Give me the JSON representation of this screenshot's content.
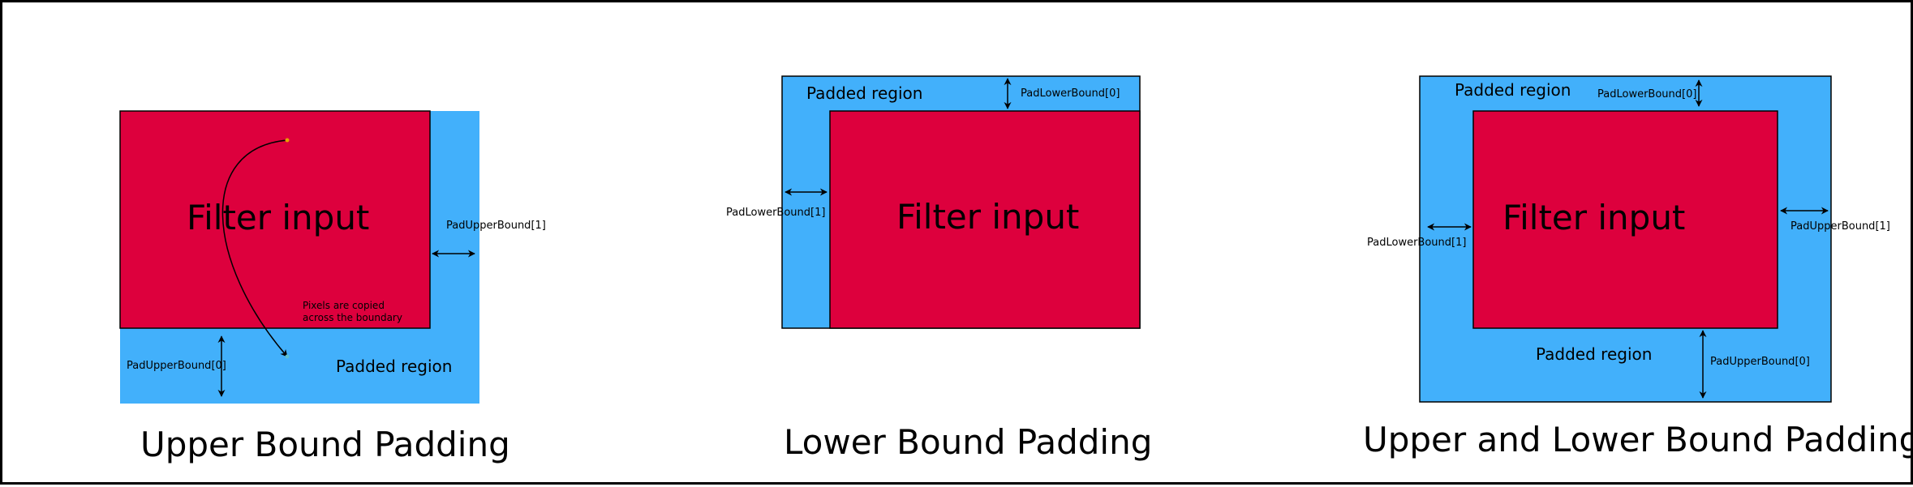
{
  "colors": {
    "filter_input": "#dd003d",
    "padded_region": "#42b0fb",
    "outline": "#000000",
    "start_point": "#e8a000",
    "end_point": "#5fbfd0"
  },
  "panel1": {
    "title": "Upper Bound Padding",
    "filter_label": "Filter input",
    "padded_label": "Padded region",
    "upper_bound_1": "PadUpperBound[1]",
    "upper_bound_0": "PadUpperBound[0]",
    "note": "Pixels are copied across the boundary"
  },
  "panel2": {
    "title": "Lower Bound Padding",
    "filter_label": "Filter input",
    "padded_label": "Padded region",
    "lower_bound_0": "PadLowerBound[0]",
    "lower_bound_1": "PadLowerBound[1]"
  },
  "panel3": {
    "title": "Upper and Lower Bound Padding",
    "filter_label": "Filter input",
    "padded_label_top": "Padded region",
    "padded_label_bottom": "Padded region",
    "lower_bound_0": "PadLowerBound[0]",
    "lower_bound_1": "PadLowerBound[1]",
    "upper_bound_1": "PadUpperBound[1]",
    "upper_bound_0": "PadUpperBound[0]"
  }
}
